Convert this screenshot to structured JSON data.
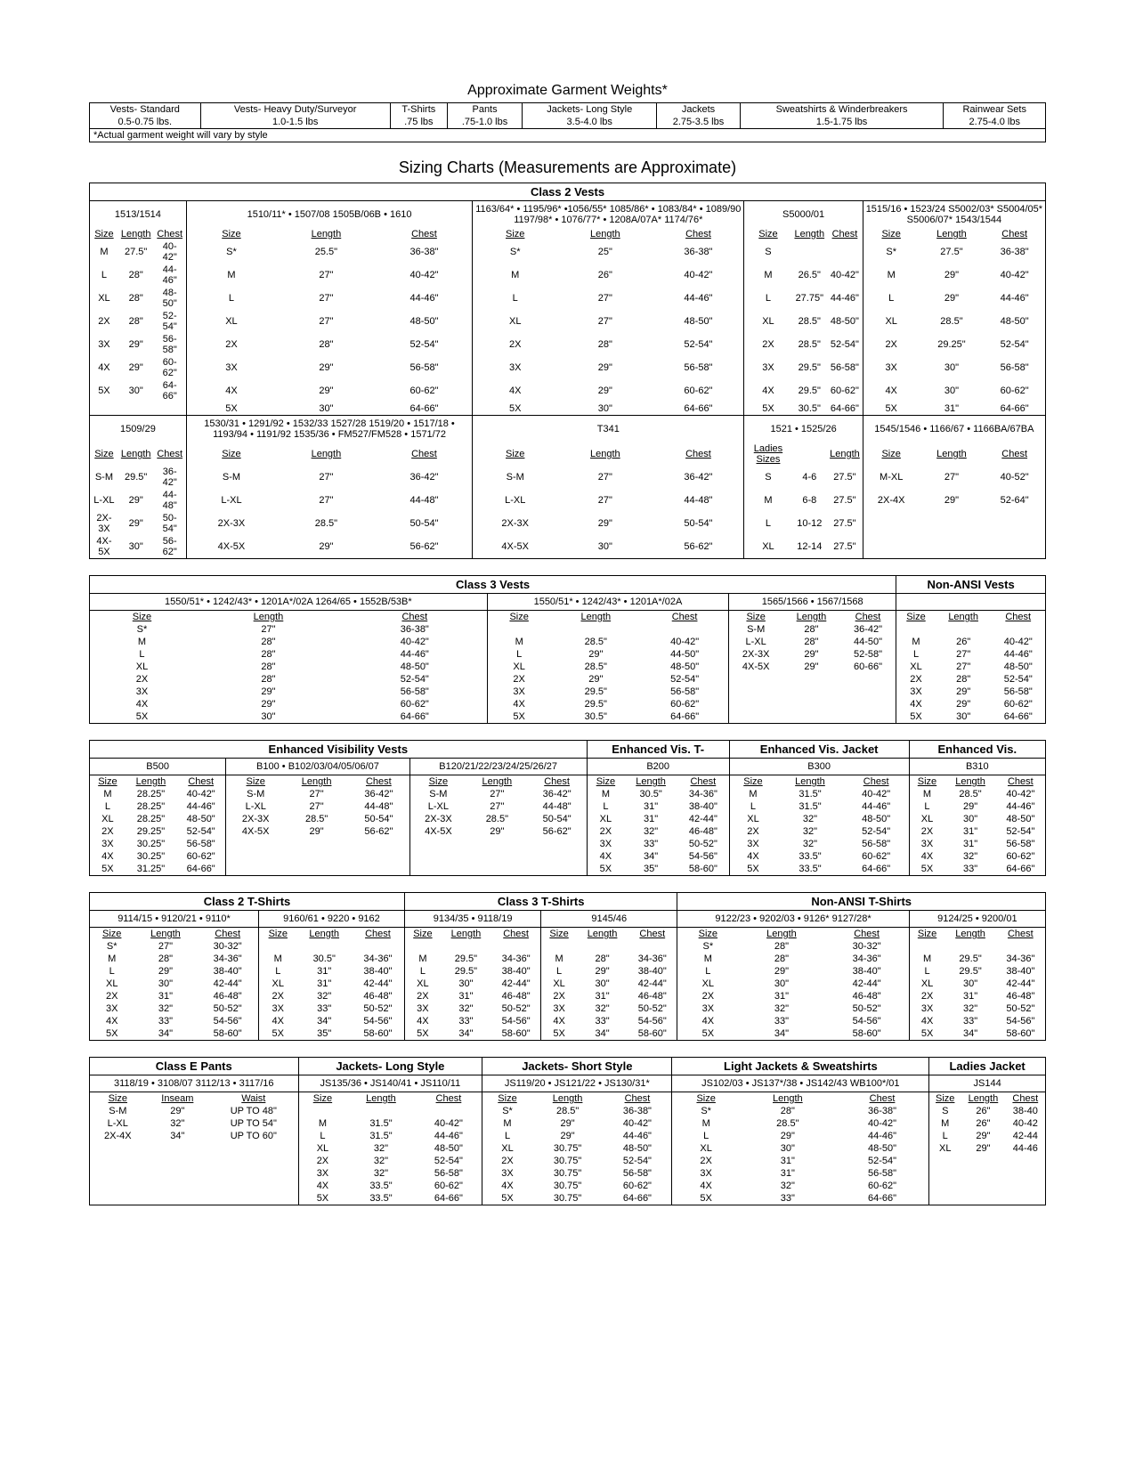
{
  "titles": {
    "weights": "Approximate Garment Weights*",
    "sizing": "Sizing Charts (Measurements are Approximate)"
  },
  "weights": {
    "columns": [
      "Vests- Standard",
      "Vests- Heavy Duty/Surveyor",
      "T-Shirts",
      "Pants",
      "Jackets- Long Style",
      "Jackets",
      "Sweatshirts & Winderbreakers",
      "Rainwear Sets"
    ],
    "values": [
      "0.5-0.75 lbs.",
      "1.0-1.5 lbs",
      ".75 lbs",
      ".75-1.0 lbs",
      "3.5-4.0 lbs",
      "2.75-3.5 lbs",
      "1.5-1.75 lbs",
      "2.75-4.0 lbs"
    ],
    "note": "*Actual garment weight will vary by style"
  },
  "class2vests": {
    "heading": "Class 2 Vests",
    "row1groups": [
      "1513/1514",
      "1510/11* • 1507/08  1505B/06B • 1610",
      "1163/64* • 1195/96* •1056/55* 1085/86* • 1083/84* • 1089/90  1197/98* • 1076/77* • 1208A/07A*  1174/76*",
      "S5000/01",
      "1515/16 • 1523/24 S5002/03* S5004/05* S5006/07* 1543/1544"
    ],
    "row1data": [
      [
        [
          "M",
          "27.5\"",
          "40-42\""
        ],
        [
          "L",
          "28\"",
          "44-46\""
        ],
        [
          "XL",
          "28\"",
          "48-50\""
        ],
        [
          "2X",
          "28\"",
          "52-54\""
        ],
        [
          "3X",
          "29\"",
          "56-58\""
        ],
        [
          "4X",
          "29\"",
          "60-62\""
        ],
        [
          "5X",
          "30\"",
          "64-66\""
        ]
      ],
      [
        [
          "S*",
          "25.5\"",
          "36-38\""
        ],
        [
          "M",
          "27\"",
          "40-42\""
        ],
        [
          "L",
          "27\"",
          "44-46\""
        ],
        [
          "XL",
          "27\"",
          "48-50\""
        ],
        [
          "2X",
          "28\"",
          "52-54\""
        ],
        [
          "3X",
          "29\"",
          "56-58\""
        ],
        [
          "4X",
          "29\"",
          "60-62\""
        ],
        [
          "5X",
          "30\"",
          "64-66\""
        ]
      ],
      [
        [
          "S*",
          "25\"",
          "36-38\""
        ],
        [
          "M",
          "26\"",
          "40-42\""
        ],
        [
          "L",
          "27\"",
          "44-46\""
        ],
        [
          "XL",
          "27\"",
          "48-50\""
        ],
        [
          "2X",
          "28\"",
          "52-54\""
        ],
        [
          "3X",
          "29\"",
          "56-58\""
        ],
        [
          "4X",
          "29\"",
          "60-62\""
        ],
        [
          "5X",
          "30\"",
          "64-66\""
        ]
      ],
      [
        [
          "S",
          "",
          ""
        ],
        [
          "M",
          "26.5\"",
          "40-42\""
        ],
        [
          "L",
          "27.75\"",
          "44-46\""
        ],
        [
          "XL",
          "28.5\"",
          "48-50\""
        ],
        [
          "2X",
          "28.5\"",
          "52-54\""
        ],
        [
          "3X",
          "29.5\"",
          "56-58\""
        ],
        [
          "4X",
          "29.5\"",
          "60-62\""
        ],
        [
          "5X",
          "30.5\"",
          "64-66\""
        ]
      ],
      [
        [
          "S*",
          "27.5\"",
          "36-38\""
        ],
        [
          "M",
          "29\"",
          "40-42\""
        ],
        [
          "L",
          "29\"",
          "44-46\""
        ],
        [
          "XL",
          "28.5\"",
          "48-50\""
        ],
        [
          "2X",
          "29.25\"",
          "52-54\""
        ],
        [
          "3X",
          "30\"",
          "56-58\""
        ],
        [
          "4X",
          "30\"",
          "60-62\""
        ],
        [
          "5X",
          "31\"",
          "64-66\""
        ]
      ]
    ],
    "row2groups": [
      "1509/29",
      "1530/31 • 1291/92 • 1532/33 1527/28 1519/20 • 1517/18 • 1193/94 • 1191/92 1535/36 • FM527/FM528 • 1571/72",
      "T341",
      "1521 • 1525/26",
      "1545/1546 • 1166/67 • 1166BA/67BA"
    ],
    "row2headers": [
      [
        "Size",
        "Length",
        "Chest"
      ],
      [
        "Size",
        "Length",
        "Chest"
      ],
      [
        "Size",
        "Length",
        "Chest"
      ],
      [
        "Ladies Sizes",
        "",
        "Length"
      ],
      [
        "Size",
        "Length",
        "Chest"
      ]
    ],
    "row2data": [
      [
        [
          "S-M",
          "29.5\"",
          "36-42\""
        ],
        [
          "L-XL",
          "29\"",
          "44-48\""
        ],
        [
          "2X-3X",
          "29\"",
          "50-54\""
        ],
        [
          "4X-5X",
          "30\"",
          "56-62\""
        ]
      ],
      [
        [
          "S-M",
          "27\"",
          "36-42\""
        ],
        [
          "L-XL",
          "27\"",
          "44-48\""
        ],
        [
          "2X-3X",
          "28.5\"",
          "50-54\""
        ],
        [
          "4X-5X",
          "29\"",
          "56-62\""
        ]
      ],
      [
        [
          "S-M",
          "27\"",
          "36-42\""
        ],
        [
          "L-XL",
          "27\"",
          "44-48\""
        ],
        [
          "2X-3X",
          "29\"",
          "50-54\""
        ],
        [
          "4X-5X",
          "30\"",
          "56-62\""
        ]
      ],
      [
        [
          "S",
          "4-6",
          "27.5\""
        ],
        [
          "M",
          "6-8",
          "27.5\""
        ],
        [
          "L",
          "10-12",
          "27.5\""
        ],
        [
          "XL",
          "12-14",
          "27.5\""
        ]
      ],
      [
        [
          "M-XL",
          "27\"",
          "40-52\""
        ],
        [
          "2X-4X",
          "29\"",
          "52-64\""
        ]
      ]
    ]
  },
  "class3vests": {
    "headings": [
      "Class 3 Vests",
      "Non-ANSI Vests"
    ],
    "groups": [
      "1550/51* • 1242/43* • 1201A*/02A 1264/65 • 1552B/53B*",
      "1550/51* • 1242/43* • 1201A*/02A",
      "1565/1566 • 1567/1568",
      ""
    ],
    "data": [
      [
        [
          "S*",
          "27\"",
          "36-38\""
        ],
        [
          "M",
          "28\"",
          "40-42\""
        ],
        [
          "L",
          "28\"",
          "44-46\""
        ],
        [
          "XL",
          "28\"",
          "48-50\""
        ],
        [
          "2X",
          "28\"",
          "52-54\""
        ],
        [
          "3X",
          "29\"",
          "56-58\""
        ],
        [
          "4X",
          "29\"",
          "60-62\""
        ],
        [
          "5X",
          "30\"",
          "64-66\""
        ]
      ],
      [
        [
          "",
          "",
          ""
        ],
        [
          "M",
          "28.5\"",
          "40-42\""
        ],
        [
          "L",
          "29\"",
          "44-50\""
        ],
        [
          "XL",
          "28.5\"",
          "48-50\""
        ],
        [
          "2X",
          "29\"",
          "52-54\""
        ],
        [
          "3X",
          "29.5\"",
          "56-58\""
        ],
        [
          "4X",
          "29.5\"",
          "60-62\""
        ],
        [
          "5X",
          "30.5\"",
          "64-66\""
        ]
      ],
      [
        [
          "S-M",
          "28\"",
          "36-42\""
        ],
        [
          "L-XL",
          "28\"",
          "44-50\""
        ],
        [
          "2X-3X",
          "29\"",
          "52-58\""
        ],
        [
          "4X-5X",
          "29\"",
          "60-66\""
        ]
      ],
      [
        [
          "",
          "",
          ""
        ],
        [
          "M",
          "26\"",
          "40-42\""
        ],
        [
          "L",
          "27\"",
          "44-46\""
        ],
        [
          "XL",
          "27\"",
          "48-50\""
        ],
        [
          "2X",
          "28\"",
          "52-54\""
        ],
        [
          "3X",
          "29\"",
          "56-58\""
        ],
        [
          "4X",
          "29\"",
          "60-62\""
        ],
        [
          "5X",
          "30\"",
          "64-66\""
        ]
      ]
    ]
  },
  "enhanced": {
    "headings": [
      "Enhanced Visibility Vests",
      "Enhanced Vis. T-",
      "Enhanced Vis. Jacket",
      "Enhanced Vis."
    ],
    "groups": [
      "B500",
      "B100 • B102/03/04/05/06/07",
      "B120/21/22/23/24/25/26/27",
      "B200",
      "B300",
      "B310"
    ],
    "data": [
      [
        [
          "M",
          "28.25\"",
          "40-42\""
        ],
        [
          "L",
          "28.25\"",
          "44-46\""
        ],
        [
          "XL",
          "28.25\"",
          "48-50\""
        ],
        [
          "2X",
          "29.25\"",
          "52-54\""
        ],
        [
          "3X",
          "30.25\"",
          "56-58\""
        ],
        [
          "4X",
          "30.25\"",
          "60-62\""
        ],
        [
          "5X",
          "31.25\"",
          "64-66\""
        ]
      ],
      [
        [
          "S-M",
          "27\"",
          "36-42\""
        ],
        [
          "L-XL",
          "27\"",
          "44-48\""
        ],
        [
          "2X-3X",
          "28.5\"",
          "50-54\""
        ],
        [
          "4X-5X",
          "29\"",
          "56-62\""
        ]
      ],
      [
        [
          "S-M",
          "27\"",
          "36-42\""
        ],
        [
          "L-XL",
          "27\"",
          "44-48\""
        ],
        [
          "2X-3X",
          "28.5\"",
          "50-54\""
        ],
        [
          "4X-5X",
          "29\"",
          "56-62\""
        ]
      ],
      [
        [
          "M",
          "30.5\"",
          "34-36\""
        ],
        [
          "L",
          "31\"",
          "38-40\""
        ],
        [
          "XL",
          "31\"",
          "42-44\""
        ],
        [
          "2X",
          "32\"",
          "46-48\""
        ],
        [
          "3X",
          "33\"",
          "50-52\""
        ],
        [
          "4X",
          "34\"",
          "54-56\""
        ],
        [
          "5X",
          "35\"",
          "58-60\""
        ]
      ],
      [
        [
          "M",
          "31.5\"",
          "40-42\""
        ],
        [
          "L",
          "31.5\"",
          "44-46\""
        ],
        [
          "XL",
          "32\"",
          "48-50\""
        ],
        [
          "2X",
          "32\"",
          "52-54\""
        ],
        [
          "3X",
          "32\"",
          "56-58\""
        ],
        [
          "4X",
          "33.5\"",
          "60-62\""
        ],
        [
          "5X",
          "33.5\"",
          "64-66\""
        ]
      ],
      [
        [
          "M",
          "28.5\"",
          "40-42\""
        ],
        [
          "L",
          "29\"",
          "44-46\""
        ],
        [
          "XL",
          "30\"",
          "48-50\""
        ],
        [
          "2X",
          "31\"",
          "52-54\""
        ],
        [
          "3X",
          "31\"",
          "56-58\""
        ],
        [
          "4X",
          "32\"",
          "60-62\""
        ],
        [
          "5X",
          "33\"",
          "64-66\""
        ]
      ]
    ]
  },
  "tshirts": {
    "headings": [
      "Class 2 T-Shirts",
      "Class 3 T-Shirts",
      "Non-ANSI T-Shirts"
    ],
    "groups": [
      "9114/15 • 9120/21 • 9110*",
      "9160/61 • 9220 • 9162",
      "9134/35 • 9118/19",
      "9145/46",
      "9122/23 • 9202/03 • 9126* 9127/28*",
      "9124/25 • 9200/01"
    ],
    "data": [
      [
        [
          "S*",
          "27\"",
          "30-32\""
        ],
        [
          "M",
          "28\"",
          "34-36\""
        ],
        [
          "L",
          "29\"",
          "38-40\""
        ],
        [
          "XL",
          "30\"",
          "42-44\""
        ],
        [
          "2X",
          "31\"",
          "46-48\""
        ],
        [
          "3X",
          "32\"",
          "50-52\""
        ],
        [
          "4X",
          "33\"",
          "54-56\""
        ],
        [
          "5X",
          "34\"",
          "58-60\""
        ]
      ],
      [
        [
          "",
          "",
          ""
        ],
        [
          "M",
          "30.5\"",
          "34-36\""
        ],
        [
          "L",
          "31\"",
          "38-40\""
        ],
        [
          "XL",
          "31\"",
          "42-44\""
        ],
        [
          "2X",
          "32\"",
          "46-48\""
        ],
        [
          "3X",
          "33\"",
          "50-52\""
        ],
        [
          "4X",
          "34\"",
          "54-56\""
        ],
        [
          "5X",
          "35\"",
          "58-60\""
        ]
      ],
      [
        [
          "",
          "",
          ""
        ],
        [
          "M",
          "29.5\"",
          "34-36\""
        ],
        [
          "L",
          "29.5\"",
          "38-40\""
        ],
        [
          "XL",
          "30\"",
          "42-44\""
        ],
        [
          "2X",
          "31\"",
          "46-48\""
        ],
        [
          "3X",
          "32\"",
          "50-52\""
        ],
        [
          "4X",
          "33\"",
          "54-56\""
        ],
        [
          "5X",
          "34\"",
          "58-60\""
        ]
      ],
      [
        [
          "",
          "",
          ""
        ],
        [
          "M",
          "28\"",
          "34-36\""
        ],
        [
          "L",
          "29\"",
          "38-40\""
        ],
        [
          "XL",
          "30\"",
          "42-44\""
        ],
        [
          "2X",
          "31\"",
          "46-48\""
        ],
        [
          "3X",
          "32\"",
          "50-52\""
        ],
        [
          "4X",
          "33\"",
          "54-56\""
        ],
        [
          "5X",
          "34\"",
          "58-60\""
        ]
      ],
      [
        [
          "S*",
          "28\"",
          "30-32\""
        ],
        [
          "M",
          "28\"",
          "34-36\""
        ],
        [
          "L",
          "29\"",
          "38-40\""
        ],
        [
          "XL",
          "30\"",
          "42-44\""
        ],
        [
          "2X",
          "31\"",
          "46-48\""
        ],
        [
          "3X",
          "32\"",
          "50-52\""
        ],
        [
          "4X",
          "33\"",
          "54-56\""
        ],
        [
          "5X",
          "34\"",
          "58-60\""
        ]
      ],
      [
        [
          "",
          "",
          ""
        ],
        [
          "M",
          "29.5\"",
          "34-36\""
        ],
        [
          "L",
          "29.5\"",
          "38-40\""
        ],
        [
          "XL",
          "30\"",
          "42-44\""
        ],
        [
          "2X",
          "31\"",
          "46-48\""
        ],
        [
          "3X",
          "32\"",
          "50-52\""
        ],
        [
          "4X",
          "33\"",
          "54-56\""
        ],
        [
          "5X",
          "34\"",
          "58-60\""
        ]
      ]
    ]
  },
  "bottom": {
    "headings": [
      "Class E   Pants",
      "Jackets- Long Style",
      "Jackets- Short Style",
      "Light Jackets & Sweatshirts",
      "Ladies Jacket"
    ],
    "groups": [
      "3118/19 • 3108/07 3112/13 • 3117/16",
      "JS135/36 • JS140/41 • JS110/11",
      "JS119/20 • JS121/22 • JS130/31*",
      "JS102/03 • JS137*/38 • JS142/43 WB100*/01",
      "JS144"
    ],
    "headers": [
      [
        "Size",
        "Inseam",
        "Waist"
      ],
      [
        "Size",
        "Length",
        "Chest"
      ],
      [
        "Size",
        "Length",
        "Chest"
      ],
      [
        "Size",
        "Length",
        "Chest"
      ],
      [
        "Size",
        "Length",
        "Chest"
      ]
    ],
    "data": [
      [
        [
          "S-M",
          "29\"",
          "UP TO 48\""
        ],
        [
          "L-XL",
          "32\"",
          "UP TO 54\""
        ],
        [
          "2X-4X",
          "34\"",
          "UP TO 60\""
        ]
      ],
      [
        [
          "",
          "",
          ""
        ],
        [
          "M",
          "31.5\"",
          "40-42\""
        ],
        [
          "L",
          "31.5\"",
          "44-46\""
        ],
        [
          "XL",
          "32\"",
          "48-50\""
        ],
        [
          "2X",
          "32\"",
          "52-54\""
        ],
        [
          "3X",
          "32\"",
          "56-58\""
        ],
        [
          "4X",
          "33.5\"",
          "60-62\""
        ],
        [
          "5X",
          "33.5\"",
          "64-66\""
        ]
      ],
      [
        [
          "S*",
          "28.5\"",
          "36-38\""
        ],
        [
          "M",
          "29\"",
          "40-42\""
        ],
        [
          "L",
          "29\"",
          "44-46\""
        ],
        [
          "XL",
          "30.75\"",
          "48-50\""
        ],
        [
          "2X",
          "30.75\"",
          "52-54\""
        ],
        [
          "3X",
          "30.75\"",
          "56-58\""
        ],
        [
          "4X",
          "30.75\"",
          "60-62\""
        ],
        [
          "5X",
          "30.75\"",
          "64-66\""
        ]
      ],
      [
        [
          "S*",
          "28\"",
          "36-38\""
        ],
        [
          "M",
          "28.5\"",
          "40-42\""
        ],
        [
          "L",
          "29\"",
          "44-46\""
        ],
        [
          "XL",
          "30\"",
          "48-50\""
        ],
        [
          "2X",
          "31\"",
          "52-54\""
        ],
        [
          "3X",
          "31\"",
          "56-58\""
        ],
        [
          "4X",
          "32\"",
          "60-62\""
        ],
        [
          "5X",
          "33\"",
          "64-66\""
        ]
      ],
      [
        [
          "S",
          "26\"",
          "38-40"
        ],
        [
          "M",
          "26\"",
          "40-42"
        ],
        [
          "L",
          "29\"",
          "42-44"
        ],
        [
          "XL",
          "29\"",
          "44-46"
        ]
      ]
    ]
  },
  "labels": {
    "size": "Size",
    "length": "Length",
    "chest": "Chest",
    "inseam": "Inseam",
    "waist": "Waist",
    "ladies": "Ladies Sizes"
  }
}
